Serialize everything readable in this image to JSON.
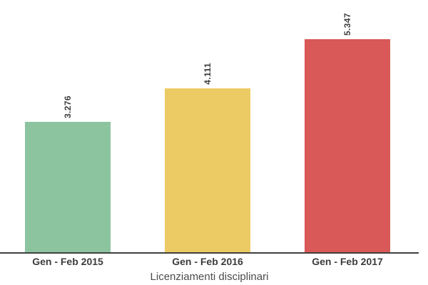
{
  "chart_data": {
    "type": "bar",
    "title": "Licenziamenti disciplinari",
    "categories": [
      "Gen - Feb 2015",
      "Gen - Feb 2016",
      "Gen - Feb 2017"
    ],
    "values": [
      3276,
      4111,
      5347
    ],
    "value_labels": [
      "3.276",
      "4.111",
      "5.347"
    ],
    "bar_colors": [
      "#8CC49F",
      "#EDCB64",
      "#D95858"
    ],
    "xlabel": "",
    "ylabel": "",
    "ylim": [
      0,
      6330
    ],
    "grid": false,
    "legend_position": "none",
    "value_label_rotation_deg": 90,
    "axis_line_color": "#404040",
    "label_color": "#3C3C3C",
    "title_color": "#4C4C4C",
    "background_color": "#FFFFFF"
  }
}
